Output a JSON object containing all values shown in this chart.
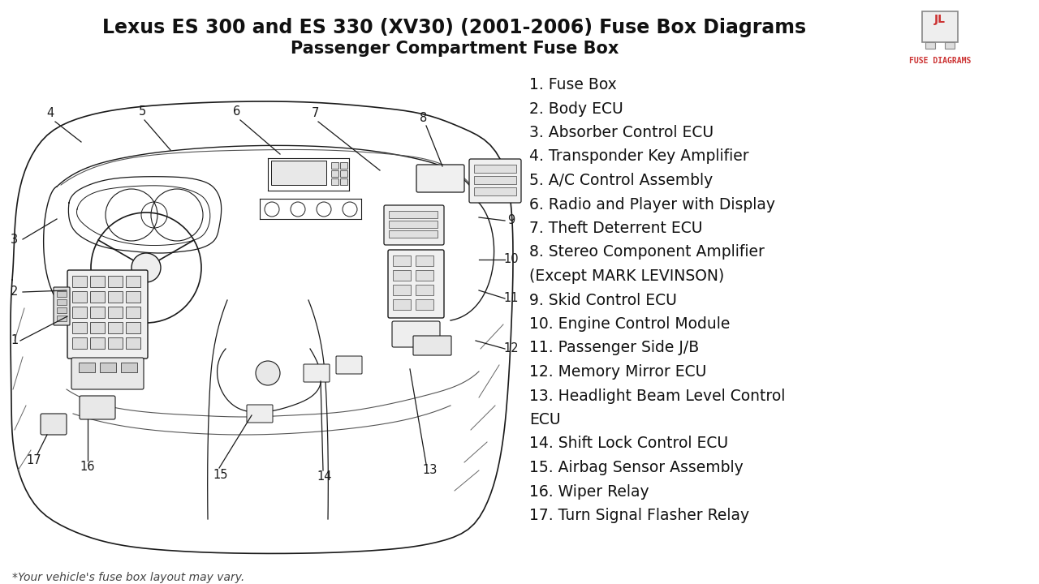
{
  "title_line1": "Lexus ES 300 and ES 330 (XV30) (2001-2006) Fuse Box Diagrams",
  "title_line2": "Passenger Compartment Fuse Box",
  "background_color": "#ffffff",
  "title_color": "#111111",
  "subtitle_color": "#111111",
  "legend_items": [
    {
      "num": "1.",
      "text": " Fuse Box"
    },
    {
      "num": "2.",
      "text": " Body ECU"
    },
    {
      "num": "3.",
      "text": " Absorber Control ECU"
    },
    {
      "num": "4.",
      "text": " Transponder Key Amplifier"
    },
    {
      "num": "5.",
      "text": " A/C Control Assembly"
    },
    {
      "num": "6.",
      "text": " Radio and Player with Display"
    },
    {
      "num": "7.",
      "text": " Theft Deterrent ECU"
    },
    {
      "num": "8.",
      "text": " Stereo Component Amplifier"
    },
    {
      "num": "",
      "text": "(Except MARK LEVINSON)"
    },
    {
      "num": "9.",
      "text": " Skid Control ECU"
    },
    {
      "num": "10.",
      "text": " Engine Control Module"
    },
    {
      "num": "11.",
      "text": " Passenger Side J/B"
    },
    {
      "num": "12.",
      "text": " Memory Mirror ECU"
    },
    {
      "num": "13.",
      "text": " Headlight Beam Level Control"
    },
    {
      "num": "",
      "text": "ECU"
    },
    {
      "num": "14.",
      "text": " Shift Lock Control ECU"
    },
    {
      "num": "15.",
      "text": " Airbag Sensor Assembly"
    },
    {
      "num": "16.",
      "text": " Wiper Relay"
    },
    {
      "num": "17.",
      "text": " Turn Signal Flasher Relay"
    }
  ],
  "footnote": "*Your vehicle's fuse box layout may vary.",
  "line_color": "#1a1a1a",
  "title_fontsize": 17,
  "subtitle_fontsize": 15,
  "legend_fontsize": 13.5,
  "footnote_fontsize": 10,
  "logo_text1": "JL",
  "logo_text2": "FUSE DIAGRAMS"
}
